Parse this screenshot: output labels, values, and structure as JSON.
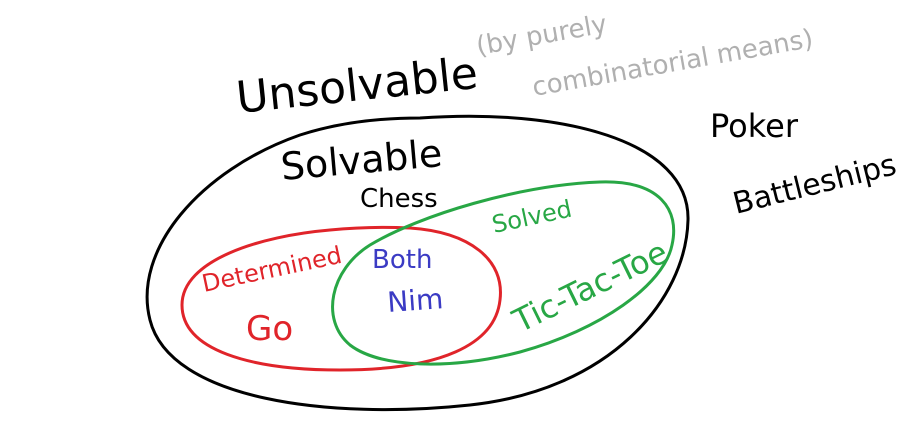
{
  "diagram": {
    "outer_label": "Unsolvable",
    "note": "(by purely combinatorial means)",
    "note_line1": "(by purely",
    "note_line2": "combinatorial means)",
    "solvable_region": {
      "label": "Solvable",
      "example": "Chess"
    },
    "determined_region": {
      "label": "Determined",
      "example": "Go",
      "color": "#e0242a"
    },
    "solved_region": {
      "label": "Solved",
      "example": "Tic-Tac-Toe",
      "color": "#28a745"
    },
    "intersection": {
      "label": "Both",
      "example": "Nim",
      "color": "#3b3bc4"
    },
    "outside_examples": [
      "Poker",
      "Battleships"
    ],
    "colors": {
      "ink": "#000000",
      "note": "#b0b0b0"
    }
  }
}
